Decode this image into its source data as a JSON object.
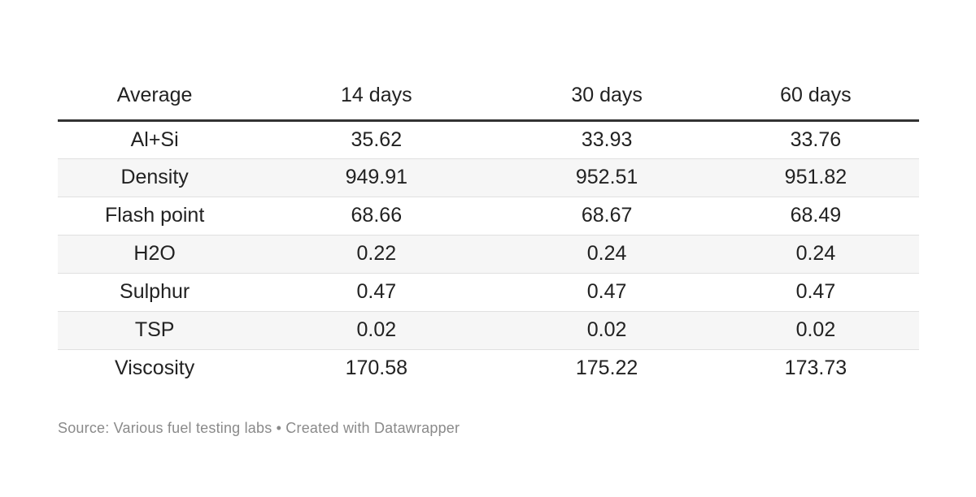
{
  "chart_data": {
    "type": "table",
    "title": "",
    "columns": [
      "Average",
      "14 days",
      "30 days",
      "60 days"
    ],
    "rows": [
      [
        "Al+Si",
        35.62,
        33.93,
        33.76
      ],
      [
        "Density",
        949.91,
        952.51,
        951.82
      ],
      [
        "Flash point",
        68.66,
        68.67,
        68.49
      ],
      [
        "H2O",
        0.22,
        0.24,
        0.24
      ],
      [
        "Sulphur",
        0.47,
        0.47,
        0.47
      ],
      [
        "TSP",
        0.02,
        0.02,
        0.02
      ],
      [
        "Viscosity",
        170.58,
        175.22,
        173.73
      ]
    ],
    "layout": {
      "stripes": true,
      "header_rule": true,
      "value_alignment": "center"
    }
  },
  "footer": {
    "text": "Source: Various fuel testing labs • Created with Datawrapper"
  },
  "colors": {
    "header_rule": "#333333",
    "row_stripe": "#f6f6f6",
    "row_border": "#e0e0e0",
    "text": "#222222",
    "footer_text": "#8a8a8a"
  }
}
